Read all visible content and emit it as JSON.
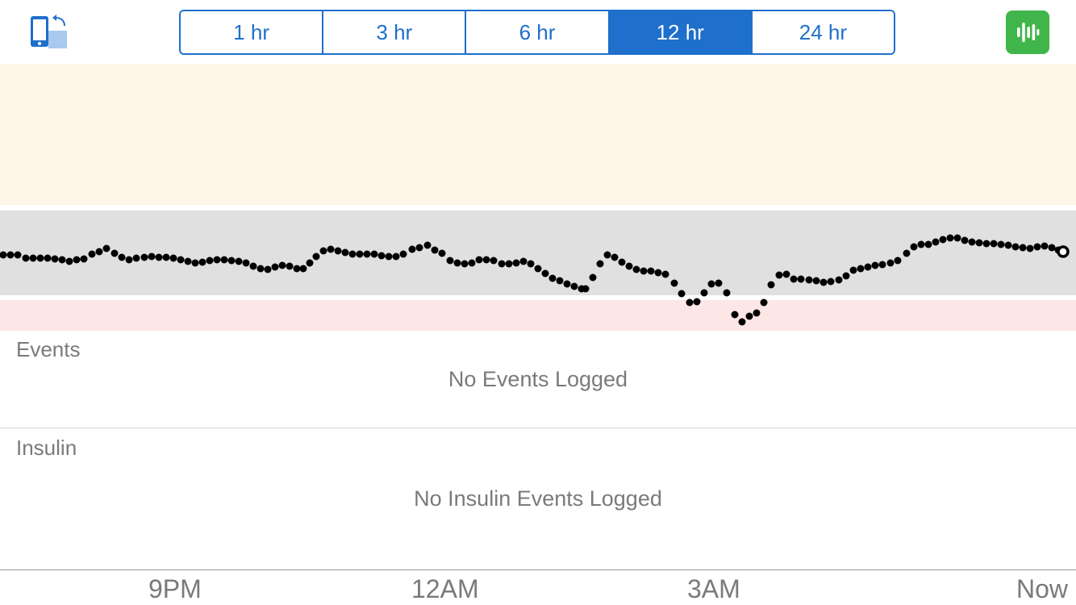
{
  "toolbar": {
    "rotate_icon": "rotate-device-icon",
    "share_icon": "audio-waveform-icon",
    "share_color": "#3fb54a",
    "accent_color": "#1f6fcc",
    "ranges": [
      {
        "label": "1 hr",
        "selected": false
      },
      {
        "label": "3 hr",
        "selected": false
      },
      {
        "label": "6 hr",
        "selected": false
      },
      {
        "label": "12 hr",
        "selected": true
      },
      {
        "label": "24 hr",
        "selected": false
      }
    ]
  },
  "events": {
    "title": "Events",
    "empty_message": "No Events Logged"
  },
  "insulin": {
    "title": "Insulin",
    "empty_message": "No Insulin Events Logged"
  },
  "chart_data": {
    "type": "scatter",
    "x_axis": {
      "ticks": [
        "9PM",
        "12AM",
        "3AM",
        "Now"
      ]
    },
    "zones": [
      {
        "name": "high",
        "color": "#fff6e8"
      },
      {
        "name": "target",
        "color": "#e0e0e0"
      },
      {
        "name": "low",
        "color": "#fde6e6"
      }
    ],
    "series": [
      {
        "point_color": "#000000",
        "latest_point_style": "hollow",
        "points": [
          [
            4,
            316
          ],
          [
            13,
            316
          ],
          [
            22,
            316
          ],
          [
            32,
            320
          ],
          [
            41,
            320
          ],
          [
            50,
            320
          ],
          [
            59,
            320
          ],
          [
            68,
            321
          ],
          [
            77,
            322
          ],
          [
            86,
            324
          ],
          [
            95,
            322
          ],
          [
            104,
            321
          ],
          [
            114,
            315
          ],
          [
            123,
            312
          ],
          [
            132,
            308
          ],
          [
            142,
            314
          ],
          [
            151,
            319
          ],
          [
            160,
            322
          ],
          [
            169,
            320
          ],
          [
            179,
            319
          ],
          [
            188,
            318
          ],
          [
            197,
            319
          ],
          [
            206,
            319
          ],
          [
            215,
            320
          ],
          [
            224,
            322
          ],
          [
            233,
            324
          ],
          [
            242,
            326
          ],
          [
            251,
            325
          ],
          [
            260,
            323
          ],
          [
            269,
            322
          ],
          [
            278,
            322
          ],
          [
            287,
            323
          ],
          [
            296,
            324
          ],
          [
            305,
            326
          ],
          [
            314,
            330
          ],
          [
            323,
            333
          ],
          [
            332,
            334
          ],
          [
            341,
            331
          ],
          [
            350,
            329
          ],
          [
            359,
            330
          ],
          [
            368,
            333
          ],
          [
            376,
            333
          ],
          [
            384,
            326
          ],
          [
            392,
            318
          ],
          [
            401,
            311
          ],
          [
            410,
            309
          ],
          [
            419,
            311
          ],
          [
            428,
            313
          ],
          [
            437,
            315
          ],
          [
            446,
            315
          ],
          [
            455,
            315
          ],
          [
            464,
            315
          ],
          [
            473,
            317
          ],
          [
            482,
            318
          ],
          [
            491,
            318
          ],
          [
            500,
            315
          ],
          [
            511,
            309
          ],
          [
            520,
            307
          ],
          [
            530,
            304
          ],
          [
            539,
            310
          ],
          [
            548,
            314
          ],
          [
            558,
            323
          ],
          [
            567,
            326
          ],
          [
            576,
            327
          ],
          [
            585,
            326
          ],
          [
            594,
            322
          ],
          [
            603,
            322
          ],
          [
            612,
            323
          ],
          [
            622,
            327
          ],
          [
            631,
            327
          ],
          [
            640,
            326
          ],
          [
            649,
            324
          ],
          [
            658,
            327
          ],
          [
            667,
            333
          ],
          [
            676,
            339
          ],
          [
            685,
            345
          ],
          [
            694,
            348
          ],
          [
            703,
            352
          ],
          [
            712,
            355
          ],
          [
            721,
            358
          ],
          [
            726,
            358
          ],
          [
            735,
            344
          ],
          [
            744,
            327
          ],
          [
            753,
            316
          ],
          [
            762,
            319
          ],
          [
            771,
            325
          ],
          [
            780,
            330
          ],
          [
            789,
            334
          ],
          [
            798,
            336
          ],
          [
            807,
            336
          ],
          [
            816,
            338
          ],
          [
            825,
            340
          ],
          [
            836,
            351
          ],
          [
            845,
            364
          ],
          [
            855,
            375
          ],
          [
            864,
            374
          ],
          [
            873,
            363
          ],
          [
            882,
            352
          ],
          [
            891,
            351
          ],
          [
            901,
            363
          ],
          [
            911,
            390
          ],
          [
            920,
            399
          ],
          [
            929,
            392
          ],
          [
            938,
            388
          ],
          [
            947,
            375
          ],
          [
            956,
            353
          ],
          [
            966,
            341
          ],
          [
            975,
            340
          ],
          [
            984,
            346
          ],
          [
            993,
            346
          ],
          [
            1003,
            347
          ],
          [
            1012,
            348
          ],
          [
            1021,
            350
          ],
          [
            1030,
            349
          ],
          [
            1040,
            347
          ],
          [
            1049,
            342
          ],
          [
            1058,
            335
          ],
          [
            1067,
            333
          ],
          [
            1076,
            331
          ],
          [
            1085,
            329
          ],
          [
            1094,
            328
          ],
          [
            1104,
            326
          ],
          [
            1113,
            323
          ],
          [
            1124,
            314
          ],
          [
            1133,
            306
          ],
          [
            1142,
            303
          ],
          [
            1151,
            303
          ],
          [
            1160,
            300
          ],
          [
            1169,
            297
          ],
          [
            1178,
            295
          ],
          [
            1187,
            295
          ],
          [
            1196,
            298
          ],
          [
            1205,
            300
          ],
          [
            1214,
            301
          ],
          [
            1223,
            302
          ],
          [
            1232,
            302
          ],
          [
            1241,
            303
          ],
          [
            1250,
            304
          ],
          [
            1259,
            306
          ],
          [
            1268,
            307
          ],
          [
            1277,
            308
          ],
          [
            1286,
            306
          ],
          [
            1295,
            305
          ],
          [
            1304,
            307
          ],
          [
            1312,
            310
          ]
        ],
        "latest_point": [
          1318,
          312
        ]
      }
    ]
  }
}
